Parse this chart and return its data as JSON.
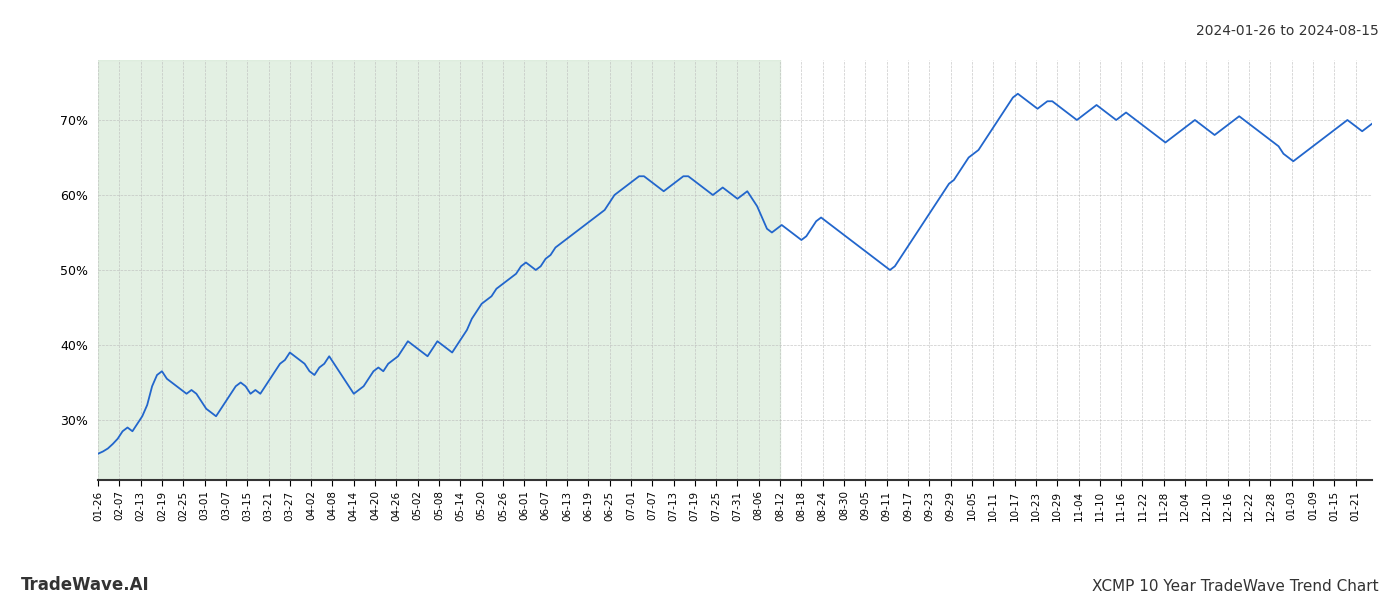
{
  "title_top_right": "2024-01-26 to 2024-08-15",
  "title_bottom_left": "TradeWave.AI",
  "title_bottom_right": "XCMP 10 Year TradeWave Trend Chart",
  "line_color": "#2266cc",
  "line_width": 1.3,
  "shade_color": "#d4e8d4",
  "shade_alpha": 0.65,
  "background_color": "#ffffff",
  "grid_color": "#bbbbbb",
  "yticks": [
    30,
    40,
    50,
    60,
    70
  ],
  "ylim": [
    22,
    78
  ],
  "x_labels": [
    "01-26",
    "02-07",
    "02-13",
    "02-19",
    "02-25",
    "03-01",
    "03-07",
    "03-15",
    "03-21",
    "03-27",
    "04-02",
    "04-08",
    "04-14",
    "04-20",
    "04-26",
    "05-02",
    "05-08",
    "05-14",
    "05-20",
    "05-26",
    "06-01",
    "06-07",
    "06-13",
    "06-19",
    "06-25",
    "07-01",
    "07-07",
    "07-13",
    "07-19",
    "07-25",
    "07-31",
    "08-06",
    "08-12",
    "08-18",
    "08-24",
    "08-30",
    "09-05",
    "09-11",
    "09-17",
    "09-23",
    "09-29",
    "10-05",
    "10-11",
    "10-17",
    "10-23",
    "10-29",
    "11-04",
    "11-10",
    "11-16",
    "11-22",
    "11-28",
    "12-04",
    "12-10",
    "12-16",
    "12-22",
    "12-28",
    "01-03",
    "01-09",
    "01-15",
    "01-21"
  ],
  "shade_label_start": "01-26",
  "shade_label_end": "08-12",
  "values": [
    25.5,
    25.8,
    26.2,
    26.8,
    27.5,
    28.5,
    29.0,
    28.5,
    29.5,
    30.5,
    32.0,
    34.5,
    36.0,
    36.5,
    35.5,
    35.0,
    34.5,
    34.0,
    33.5,
    34.0,
    33.5,
    32.5,
    31.5,
    31.0,
    30.5,
    31.5,
    32.5,
    33.5,
    34.5,
    35.0,
    34.5,
    33.5,
    34.0,
    33.5,
    34.5,
    35.5,
    36.5,
    37.5,
    38.0,
    39.0,
    38.5,
    38.0,
    37.5,
    36.5,
    36.0,
    37.0,
    37.5,
    38.5,
    37.5,
    36.5,
    35.5,
    34.5,
    33.5,
    34.0,
    34.5,
    35.5,
    36.5,
    37.0,
    36.5,
    37.5,
    38.0,
    38.5,
    39.5,
    40.5,
    40.0,
    39.5,
    39.0,
    38.5,
    39.5,
    40.5,
    40.0,
    39.5,
    39.0,
    40.0,
    41.0,
    42.0,
    43.5,
    44.5,
    45.5,
    46.0,
    46.5,
    47.5,
    48.0,
    48.5,
    49.0,
    49.5,
    50.5,
    51.0,
    50.5,
    50.0,
    50.5,
    51.5,
    52.0,
    53.0,
    53.5,
    54.0,
    54.5,
    55.0,
    55.5,
    56.0,
    56.5,
    57.0,
    57.5,
    58.0,
    59.0,
    60.0,
    60.5,
    61.0,
    61.5,
    62.0,
    62.5,
    62.5,
    62.0,
    61.5,
    61.0,
    60.5,
    61.0,
    61.5,
    62.0,
    62.5,
    62.5,
    62.0,
    61.5,
    61.0,
    60.5,
    60.0,
    60.5,
    61.0,
    60.5,
    60.0,
    59.5,
    60.0,
    60.5,
    59.5,
    58.5,
    57.0,
    55.5,
    55.0,
    55.5,
    56.0,
    55.5,
    55.0,
    54.5,
    54.0,
    54.5,
    55.5,
    56.5,
    57.0,
    56.5,
    56.0,
    55.5,
    55.0,
    54.5,
    54.0,
    53.5,
    53.0,
    52.5,
    52.0,
    51.5,
    51.0,
    50.5,
    50.0,
    50.5,
    51.5,
    52.5,
    53.5,
    54.5,
    55.5,
    56.5,
    57.5,
    58.5,
    59.5,
    60.5,
    61.5,
    62.0,
    63.0,
    64.0,
    65.0,
    65.5,
    66.0,
    67.0,
    68.0,
    69.0,
    70.0,
    71.0,
    72.0,
    73.0,
    73.5,
    73.0,
    72.5,
    72.0,
    71.5,
    72.0,
    72.5,
    72.5,
    72.0,
    71.5,
    71.0,
    70.5,
    70.0,
    70.5,
    71.0,
    71.5,
    72.0,
    71.5,
    71.0,
    70.5,
    70.0,
    70.5,
    71.0,
    70.5,
    70.0,
    69.5,
    69.0,
    68.5,
    68.0,
    67.5,
    67.0,
    67.5,
    68.0,
    68.5,
    69.0,
    69.5,
    70.0,
    69.5,
    69.0,
    68.5,
    68.0,
    68.5,
    69.0,
    69.5,
    70.0,
    70.5,
    70.0,
    69.5,
    69.0,
    68.5,
    68.0,
    67.5,
    67.0,
    66.5,
    65.5,
    65.0,
    64.5,
    65.0,
    65.5,
    66.0,
    66.5,
    67.0,
    67.5,
    68.0,
    68.5,
    69.0,
    69.5,
    70.0,
    69.5,
    69.0,
    68.5,
    69.0,
    69.5
  ]
}
